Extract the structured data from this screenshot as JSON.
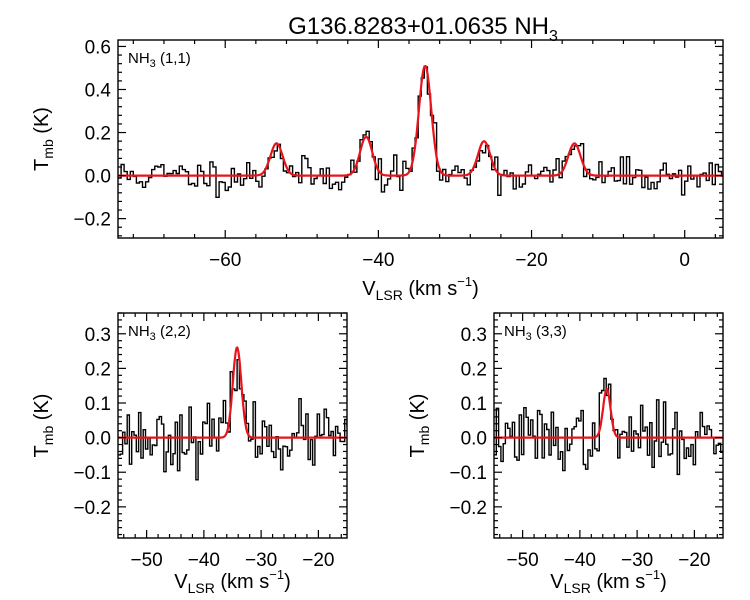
{
  "chart_data": [
    {
      "type": "line",
      "panel": "top",
      "label": "NH3 (1,1)",
      "xlabel": "V_LSR (km s^-1)",
      "ylabel": "T_mb (K)",
      "xlim": [
        -74,
        5
      ],
      "ylim": [
        -0.29,
        0.63
      ],
      "xticks": [
        -60,
        -40,
        -20,
        0
      ],
      "yticks": [
        -0.2,
        0.0,
        0.2,
        0.4,
        0.6
      ],
      "xtick_labels": [
        "−60",
        "−40",
        "−20",
        "0"
      ],
      "ytick_labels": [
        "−0.2",
        "0.0",
        "0.2",
        "0.4",
        "0.6"
      ],
      "fit_components": [
        {
          "center": -53.3,
          "amp": 0.15,
          "sigma": 0.8
        },
        {
          "center": -41.6,
          "amp": 0.18,
          "sigma": 0.8
        },
        {
          "center": -33.9,
          "amp": 0.51,
          "sigma": 0.8
        },
        {
          "center": -26.2,
          "amp": 0.16,
          "sigma": 0.8
        },
        {
          "center": -14.4,
          "amp": 0.15,
          "sigma": 0.8
        }
      ],
      "noise_rms": 0.04,
      "channel_width": 0.4,
      "seed": 11,
      "series": [
        {
          "name": "spectrum",
          "color": "#000000"
        },
        {
          "name": "fit",
          "color": "#e8141c"
        }
      ]
    },
    {
      "type": "line",
      "panel": "bottom-left",
      "label": "NH3 (2,2)",
      "xlabel": "V_LSR (km s^-1)",
      "ylabel": "T_mb (K)",
      "xlim": [
        -55,
        -15
      ],
      "ylim": [
        -0.29,
        0.36
      ],
      "xticks": [
        -50,
        -40,
        -30,
        -20
      ],
      "yticks": [
        -0.2,
        -0.1,
        0.0,
        0.1,
        0.2,
        0.3
      ],
      "xtick_labels": [
        "−50",
        "−40",
        "−30",
        "−20"
      ],
      "ytick_labels": [
        "−0.2",
        "−0.1",
        "0.0",
        "0.1",
        "0.2",
        "0.3"
      ],
      "fit_components": [
        {
          "center": -34.2,
          "amp": 0.26,
          "sigma": 0.75
        }
      ],
      "noise_rms": 0.045,
      "channel_width": 0.4,
      "seed": 23,
      "series": [
        {
          "name": "spectrum",
          "color": "#000000"
        },
        {
          "name": "fit",
          "color": "#e8141c"
        }
      ]
    },
    {
      "type": "line",
      "panel": "bottom-right",
      "label": "NH3 (3,3)",
      "xlabel": "V_LSR (km s^-1)",
      "ylabel": "T_mb (K)",
      "xlim": [
        -55,
        -15
      ],
      "ylim": [
        -0.29,
        0.36
      ],
      "xticks": [
        -50,
        -40,
        -30,
        -20
      ],
      "yticks": [
        -0.2,
        -0.1,
        0.0,
        0.1,
        0.2,
        0.3
      ],
      "xtick_labels": [
        "−50",
        "−40",
        "−30",
        "−20"
      ],
      "ytick_labels": [
        "−0.2",
        "−0.1",
        "0.0",
        "0.1",
        "0.2",
        "0.3"
      ],
      "fit_components": [
        {
          "center": -35.3,
          "amp": 0.14,
          "sigma": 0.65
        }
      ],
      "noise_rms": 0.045,
      "channel_width": 0.4,
      "seed": 37,
      "series": [
        {
          "name": "spectrum",
          "color": "#000000"
        },
        {
          "name": "fit",
          "color": "#e8141c"
        }
      ]
    }
  ],
  "figure": {
    "title_main": "G136.8283+01.0635 NH",
    "title_sub": "3",
    "panel_labels": [
      {
        "main": "NH",
        "sub": "3",
        "rest": " (1,1)"
      },
      {
        "main": "NH",
        "sub": "3",
        "rest": " (2,2)"
      },
      {
        "main": "NH",
        "sub": "3",
        "rest": " (3,3)"
      }
    ],
    "ylabel_main": "T",
    "ylabel_sub": "mb",
    "ylabel_rest": " (K)",
    "xlabel_main": "V",
    "xlabel_sub": "LSR",
    "xlabel_mid": " (km s",
    "xlabel_sup": "−1",
    "xlabel_end": ")"
  }
}
